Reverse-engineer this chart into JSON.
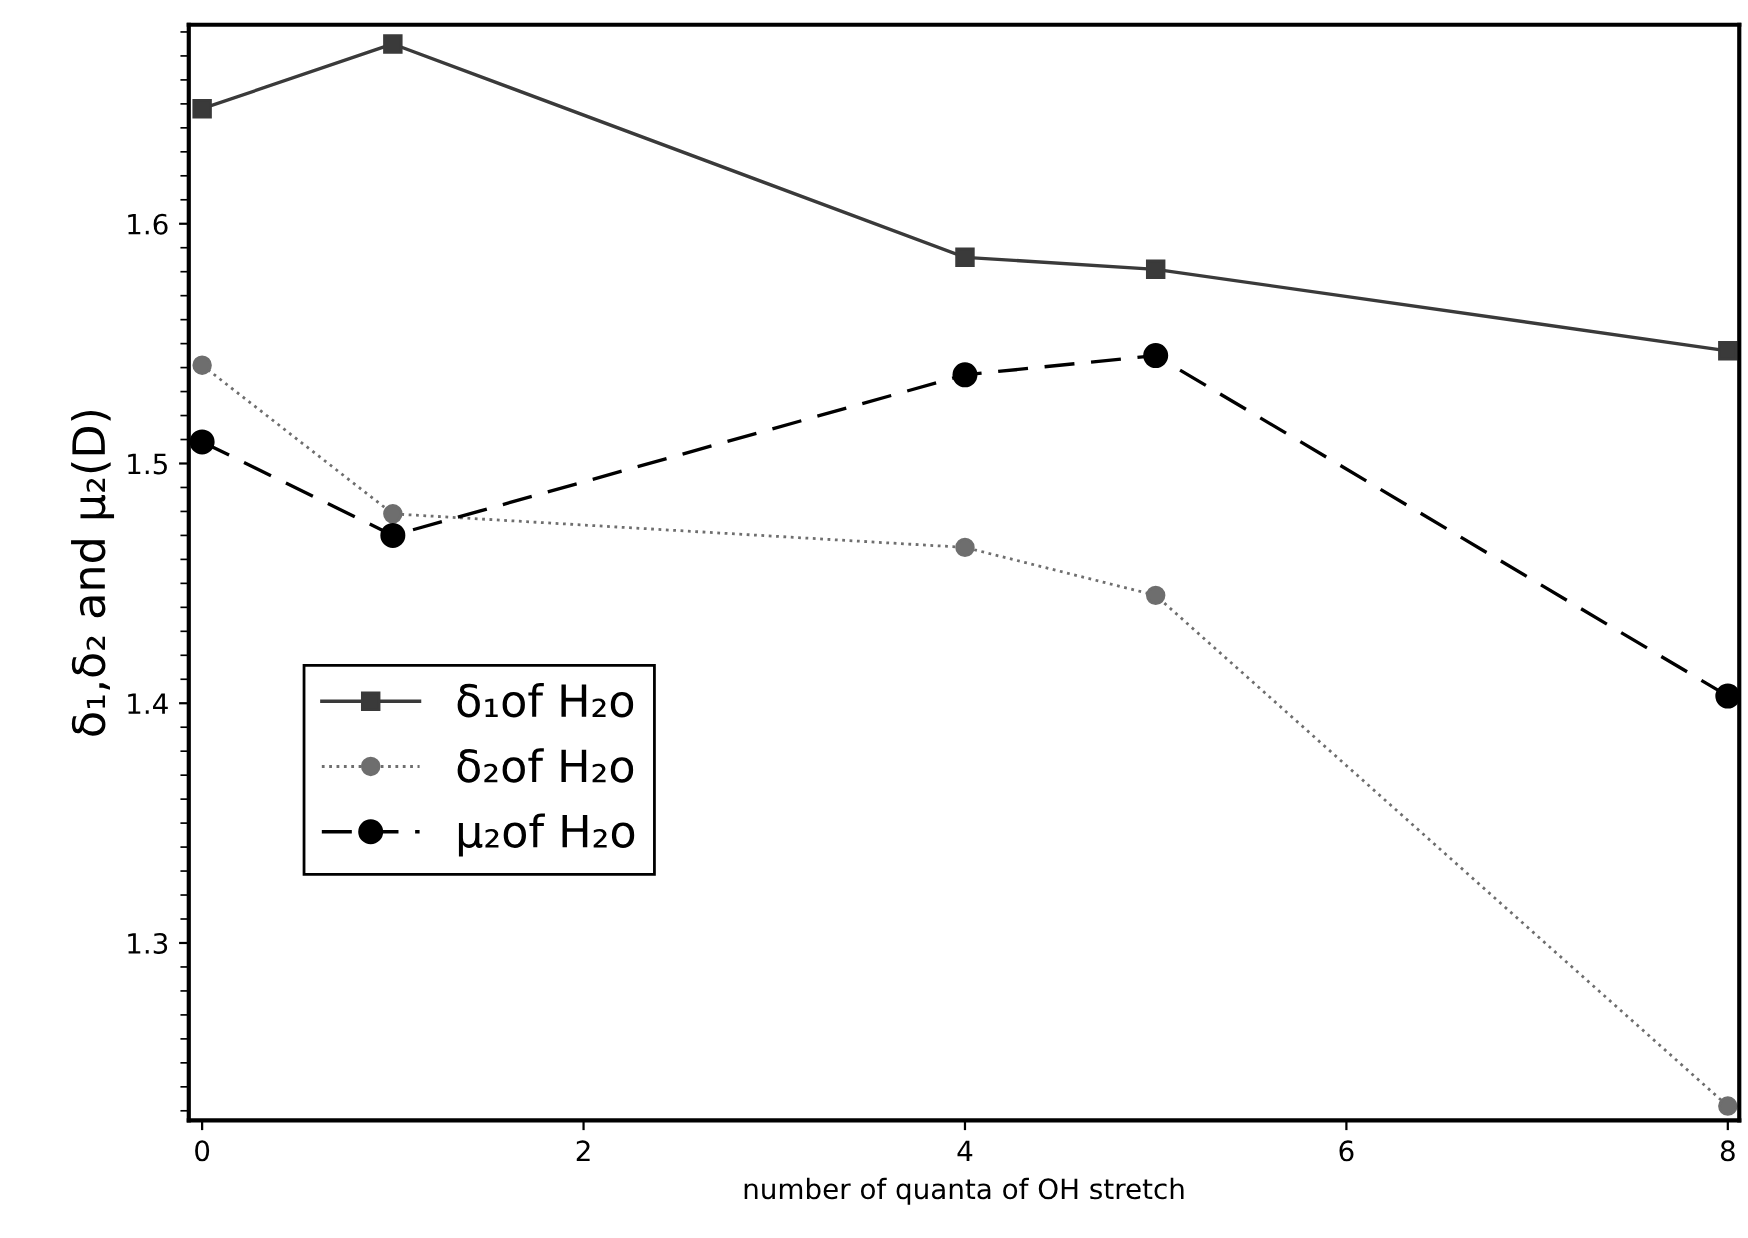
{
  "chart_data": {
    "type": "line",
    "xlabel": "number of quanta of OH stretch",
    "ylabel": "δ₁,δ₂ and μ₂(D)",
    "x": [
      0,
      1,
      4,
      5,
      8
    ],
    "series": [
      {
        "name": "δ₁of H₂o",
        "color": "#3a3a3a",
        "marker": "square",
        "line_style": "solid",
        "values": [
          1.648,
          1.675,
          1.586,
          1.581,
          1.547
        ]
      },
      {
        "name": "δ₂of H₂o",
        "color": "#6e6e6e",
        "marker": "circle",
        "line_style": "dotted",
        "values": [
          1.541,
          1.479,
          1.465,
          1.445,
          1.232
        ]
      },
      {
        "name": "μ₂of H₂o",
        "color": "#000000",
        "marker": "circle",
        "line_style": "dashed",
        "values": [
          1.509,
          1.47,
          1.537,
          1.545,
          1.403
        ]
      }
    ],
    "xlim": [
      -0.07,
      8.06
    ],
    "ylim": [
      1.226,
      1.683
    ],
    "xticks": [
      0,
      2,
      4,
      6,
      8
    ],
    "yticks": [
      1.3,
      1.4,
      1.5,
      1.6
    ],
    "grid": false,
    "legend": "center left"
  }
}
